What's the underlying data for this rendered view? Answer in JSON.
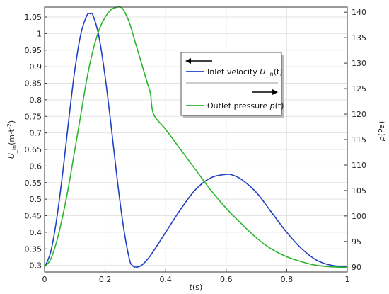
{
  "chart_data": {
    "type": "line",
    "xlabel": {
      "var": "t",
      "unit": "(s)"
    },
    "ylabel_left": {
      "var": "U",
      "sub": "_in",
      "unit": "(m·t",
      "sup": "-2",
      "close": ")"
    },
    "ylabel_right": {
      "var": "p",
      "unit": "(Pa)"
    },
    "xlim": [
      0,
      1
    ],
    "ylim_left": [
      0.28,
      1.08
    ],
    "ylim_right": [
      89,
      141
    ],
    "x_ticks": [
      "0",
      "0.2",
      "0.4",
      "0.6",
      "0.8",
      "1"
    ],
    "y_left_ticks": [
      "0.3",
      "0.35",
      "0.4",
      "0.45",
      "0.5",
      "0.55",
      "0.6",
      "0.65",
      "0.7",
      "0.75",
      "0.8",
      "0.85",
      "0.9",
      "0.95",
      "1",
      "1.05"
    ],
    "y_right_ticks": [
      "90",
      "95",
      "100",
      "105",
      "110",
      "115",
      "120",
      "125",
      "130",
      "135",
      "140"
    ],
    "grid": true,
    "legend": {
      "placement": "top-right",
      "entries": [
        {
          "text": "Inlet velocity ",
          "var": "U",
          "sub": "_in",
          "arg": "(t)",
          "color": "#1f3fc4",
          "axis_arrow": "left"
        },
        {
          "text": "Outlet pressure ",
          "var": "p",
          "sub": "",
          "arg": "(t)",
          "color": "#2bb52b",
          "axis_arrow": "right"
        }
      ]
    },
    "series": [
      {
        "axis": "left",
        "color": "#1f3fc4",
        "x": [
          0,
          0.02,
          0.04,
          0.06,
          0.08,
          0.1,
          0.12,
          0.14,
          0.15,
          0.16,
          0.18,
          0.2,
          0.22,
          0.24,
          0.26,
          0.28,
          0.29,
          0.3,
          0.32,
          0.35,
          0.4,
          0.45,
          0.5,
          0.55,
          0.6,
          0.62,
          0.65,
          0.7,
          0.75,
          0.8,
          0.85,
          0.9,
          0.95,
          1.0
        ],
        "values": [
          0.295,
          0.34,
          0.44,
          0.58,
          0.74,
          0.89,
          1.0,
          1.055,
          1.06,
          1.055,
          0.99,
          0.87,
          0.72,
          0.56,
          0.42,
          0.32,
          0.3,
          0.295,
          0.3,
          0.33,
          0.4,
          0.47,
          0.53,
          0.565,
          0.575,
          0.573,
          0.56,
          0.52,
          0.46,
          0.4,
          0.35,
          0.315,
          0.3,
          0.295
        ]
      },
      {
        "axis": "right",
        "color": "#2bb52b",
        "x": [
          0,
          0.02,
          0.04,
          0.06,
          0.08,
          0.1,
          0.12,
          0.14,
          0.16,
          0.18,
          0.2,
          0.22,
          0.24,
          0.25,
          0.26,
          0.28,
          0.3,
          0.32,
          0.34,
          0.35,
          0.36,
          0.4,
          0.45,
          0.5,
          0.55,
          0.6,
          0.65,
          0.7,
          0.75,
          0.8,
          0.85,
          0.9,
          0.95,
          1.0
        ],
        "values": [
          90,
          91.5,
          95,
          100,
          106,
          113,
          120,
          127,
          132.5,
          136.5,
          139,
          140.5,
          141,
          141,
          140.5,
          138,
          134,
          130,
          126,
          124,
          120,
          117,
          113,
          109,
          105,
          101.5,
          98.5,
          95.7,
          93.5,
          92,
          91,
          90.3,
          90,
          89.9
        ]
      }
    ]
  }
}
